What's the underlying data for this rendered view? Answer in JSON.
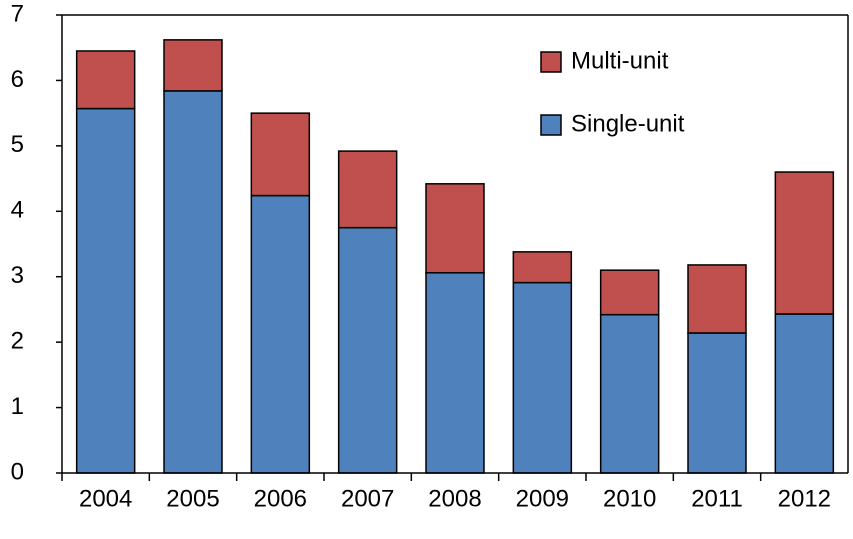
{
  "chart_data": {
    "type": "bar",
    "categories": [
      "2004",
      "2005",
      "2006",
      "2007",
      "2008",
      "2009",
      "2010",
      "2011",
      "2012"
    ],
    "series": [
      {
        "name": "Single-unit",
        "color": "#4f81bd",
        "values": [
          5.57,
          5.84,
          4.24,
          3.75,
          3.06,
          2.91,
          2.42,
          2.14,
          2.43
        ]
      },
      {
        "name": "Multi-unit",
        "color": "#c0504d",
        "values": [
          0.88,
          0.78,
          1.26,
          1.17,
          1.36,
          0.47,
          0.68,
          1.04,
          2.17
        ]
      }
    ],
    "stacked": true,
    "ylim": [
      0,
      7
    ],
    "yticks": [
      0,
      1,
      2,
      3,
      4,
      5,
      6,
      7
    ]
  }
}
